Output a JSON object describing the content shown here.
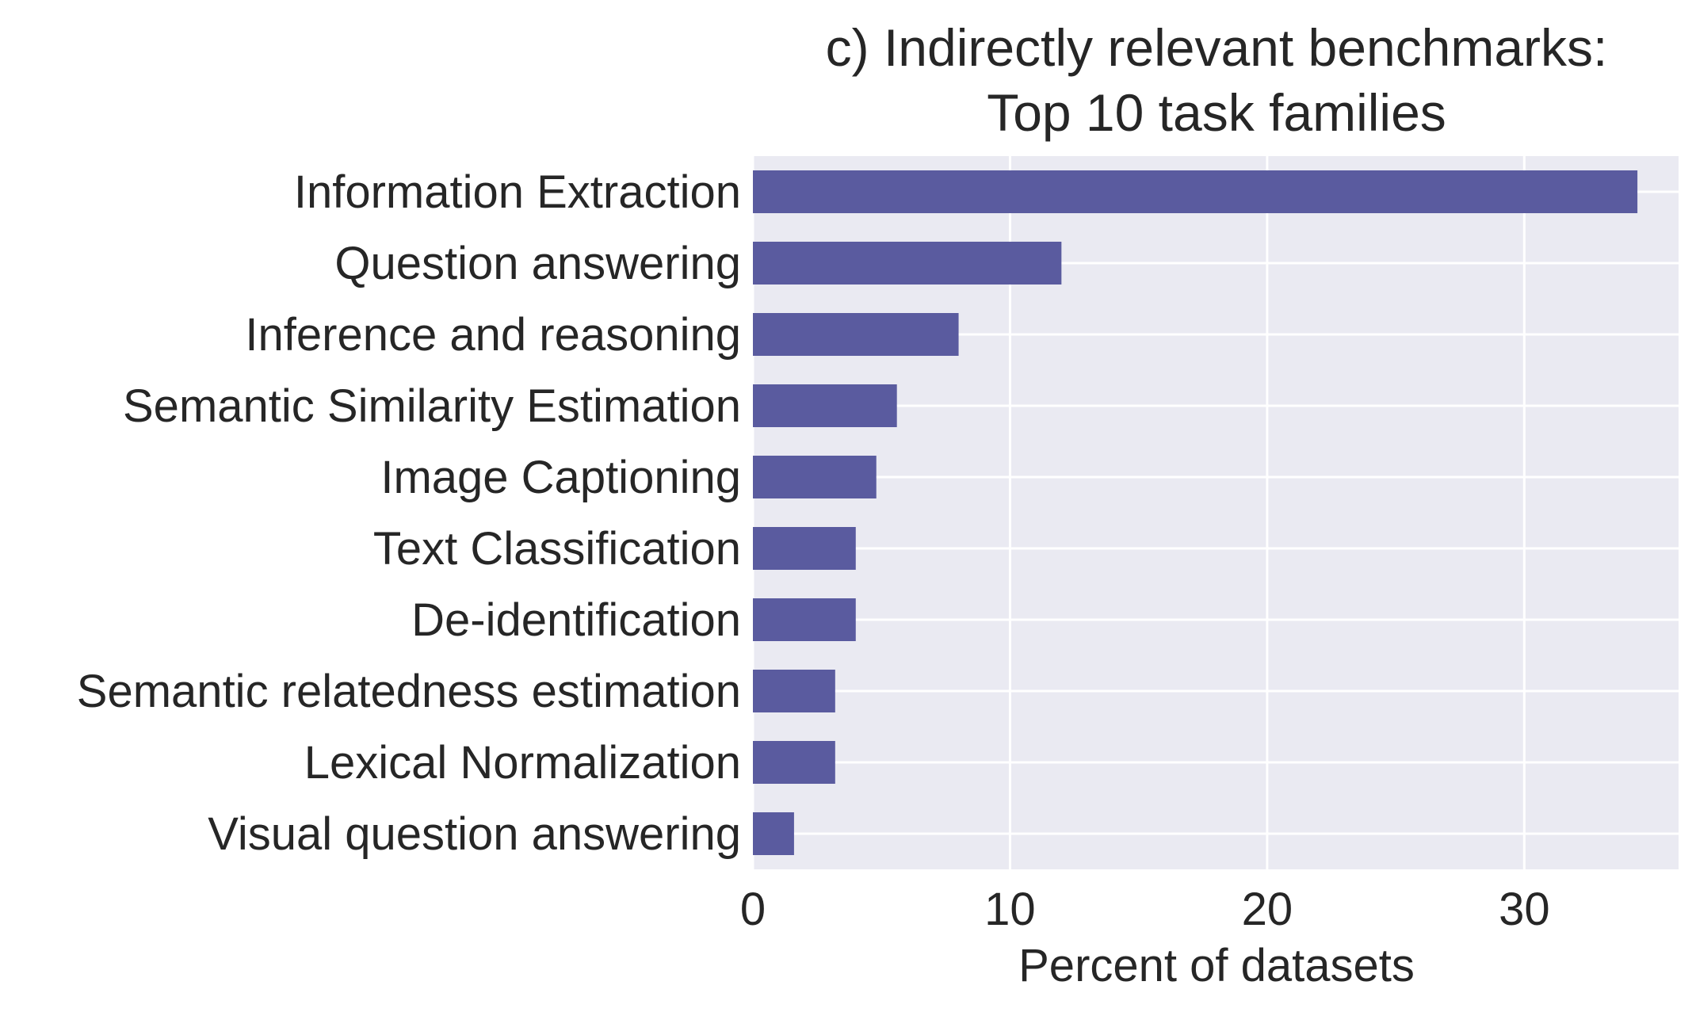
{
  "chart_data": {
    "type": "bar",
    "orientation": "horizontal",
    "title_lines": [
      "c) Indirectly relevant benchmarks:",
      "Top 10 task families"
    ],
    "xlabel": "Percent of datasets",
    "ylabel": "",
    "categories": [
      "Information Extraction",
      "Question answering",
      "Inference and reasoning",
      "Semantic Similarity Estimation",
      "Image Captioning",
      "Text Classification",
      "De-identification",
      "Semantic relatedness estimation",
      "Lexical Normalization",
      "Visual question answering"
    ],
    "values": [
      34.4,
      12.0,
      8.0,
      5.6,
      4.8,
      4.0,
      4.0,
      3.2,
      3.2,
      1.6
    ],
    "xlim": [
      0,
      36
    ],
    "xticks": [
      0,
      10,
      20,
      30
    ],
    "xtick_labels": [
      "0",
      "10",
      "20",
      "30"
    ],
    "grid": true,
    "bar_color": "#5a5b9f",
    "plot_background": "#eaeaf2",
    "grid_color": "#ffffff"
  }
}
